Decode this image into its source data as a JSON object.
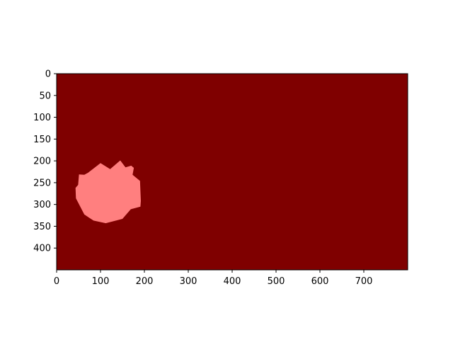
{
  "chart_data": {
    "type": "heatmap",
    "title": "",
    "xlabel": "",
    "ylabel": "",
    "xlim": [
      0,
      800
    ],
    "ylim": [
      450,
      0
    ],
    "y_axis_inverted": true,
    "x_ticks": [
      0,
      100,
      200,
      300,
      400,
      500,
      600,
      700
    ],
    "y_ticks": [
      0,
      50,
      100,
      150,
      200,
      250,
      300,
      350,
      400
    ],
    "grid": false,
    "legend": "none",
    "background_region": {
      "label": "background",
      "color": "#7f0000"
    },
    "mask_region": {
      "label": "mask",
      "color": "#ff7f7f",
      "polygon": [
        [
          100,
          205
        ],
        [
          122,
          219
        ],
        [
          145,
          199
        ],
        [
          157,
          215
        ],
        [
          170,
          211
        ],
        [
          176,
          216
        ],
        [
          173,
          232
        ],
        [
          190,
          246
        ],
        [
          192,
          292
        ],
        [
          191,
          305
        ],
        [
          169,
          311
        ],
        [
          150,
          333
        ],
        [
          112,
          343
        ],
        [
          84,
          337
        ],
        [
          63,
          323
        ],
        [
          44,
          286
        ],
        [
          43,
          262
        ],
        [
          49,
          255
        ],
        [
          51,
          231
        ],
        [
          63,
          232
        ],
        [
          72,
          227
        ]
      ]
    }
  }
}
